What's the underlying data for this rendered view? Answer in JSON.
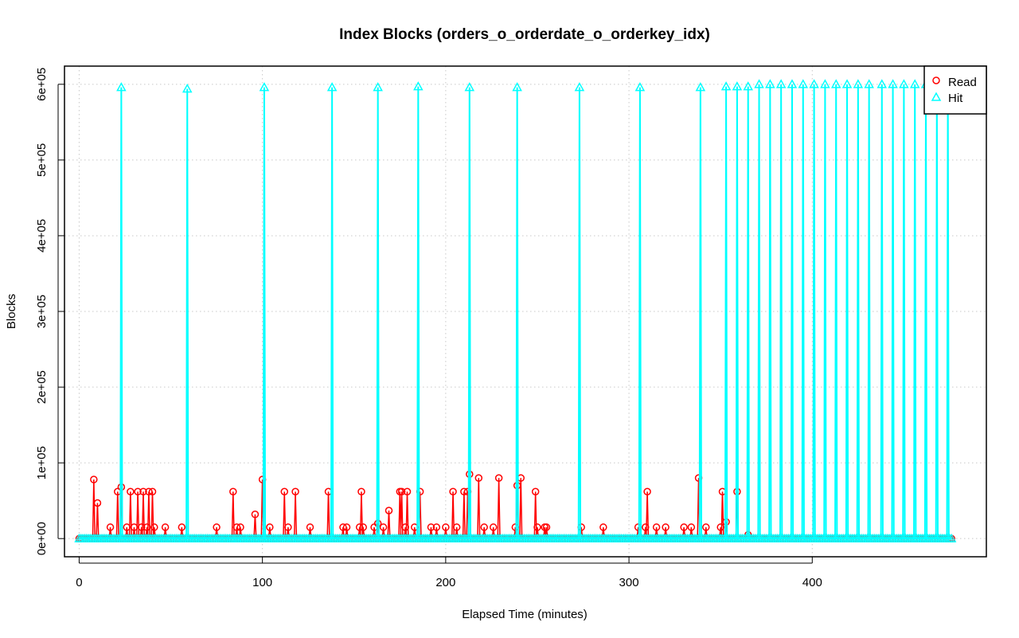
{
  "chart_data": {
    "type": "line",
    "title": "Index Blocks (orders_o_orderdate_o_orderkey_idx)",
    "xlabel": "Elapsed Time (minutes)",
    "ylabel": "Blocks",
    "xlim": [
      -8,
      495
    ],
    "ylim": [
      -24000,
      624000
    ],
    "x_ticks": [
      0,
      100,
      200,
      300,
      400
    ],
    "x_tick_labels": [
      "0",
      "100",
      "200",
      "300",
      "400"
    ],
    "y_ticks": [
      0,
      100000,
      200000,
      300000,
      400000,
      500000,
      600000
    ],
    "y_tick_labels": [
      "0e+00",
      "1e+05",
      "2e+05",
      "3e+05",
      "4e+05",
      "5e+05",
      "6e+05"
    ],
    "grid": true,
    "legend_position": "top-right",
    "x_end": 476,
    "series": [
      {
        "name": "Read",
        "color": "#ff0000",
        "marker": "circle",
        "points": [
          [
            8,
            78000
          ],
          [
            10,
            47000
          ],
          [
            17,
            15000
          ],
          [
            21,
            62000
          ],
          [
            23,
            68000
          ],
          [
            26,
            15000
          ],
          [
            28,
            62000
          ],
          [
            30,
            15000
          ],
          [
            32,
            62000
          ],
          [
            34,
            15000
          ],
          [
            35,
            62000
          ],
          [
            37,
            15000
          ],
          [
            38,
            62000
          ],
          [
            40,
            62000
          ],
          [
            41,
            15000
          ],
          [
            47,
            15000
          ],
          [
            56,
            15000
          ],
          [
            75,
            15000
          ],
          [
            84,
            62000
          ],
          [
            86,
            15000
          ],
          [
            88,
            15000
          ],
          [
            96,
            32000
          ],
          [
            100,
            78000
          ],
          [
            104,
            15000
          ],
          [
            112,
            62000
          ],
          [
            114,
            15000
          ],
          [
            118,
            62000
          ],
          [
            126,
            15000
          ],
          [
            136,
            62000
          ],
          [
            144,
            15000
          ],
          [
            146,
            15000
          ],
          [
            153,
            15000
          ],
          [
            154,
            62000
          ],
          [
            155,
            15000
          ],
          [
            161,
            15000
          ],
          [
            163,
            20000
          ],
          [
            166,
            15000
          ],
          [
            169,
            37000
          ],
          [
            175,
            62000
          ],
          [
            176,
            62000
          ],
          [
            178,
            15000
          ],
          [
            179,
            62000
          ],
          [
            183,
            15000
          ],
          [
            186,
            62000
          ],
          [
            192,
            15000
          ],
          [
            195,
            15000
          ],
          [
            200,
            15000
          ],
          [
            204,
            62000
          ],
          [
            206,
            15000
          ],
          [
            210,
            62000
          ],
          [
            212,
            62000
          ],
          [
            213,
            85000
          ],
          [
            218,
            80000
          ],
          [
            221,
            15000
          ],
          [
            226,
            15000
          ],
          [
            229,
            80000
          ],
          [
            238,
            15000
          ],
          [
            239,
            70000
          ],
          [
            241,
            80000
          ],
          [
            249,
            62000
          ],
          [
            250,
            15000
          ],
          [
            254,
            15000
          ],
          [
            255,
            15000
          ],
          [
            274,
            15000
          ],
          [
            286,
            15000
          ],
          [
            305,
            15000
          ],
          [
            309,
            15000
          ],
          [
            310,
            62000
          ],
          [
            315,
            15000
          ],
          [
            320,
            15000
          ],
          [
            330,
            15000
          ],
          [
            334,
            15000
          ],
          [
            338,
            80000
          ],
          [
            342,
            15000
          ],
          [
            350,
            15000
          ],
          [
            351,
            62000
          ],
          [
            353,
            22000
          ],
          [
            359,
            62000
          ],
          [
            365,
            5000
          ]
        ]
      },
      {
        "name": "Hit",
        "color": "#00ffff",
        "marker": "triangle",
        "peaks": [
          [
            23,
            596000
          ],
          [
            59,
            594000
          ],
          [
            101,
            596000
          ],
          [
            138,
            596000
          ],
          [
            163,
            596000
          ],
          [
            185,
            597000
          ],
          [
            213,
            596000
          ],
          [
            239,
            596000
          ],
          [
            273,
            596000
          ],
          [
            306,
            596000
          ],
          [
            339,
            596000
          ],
          [
            353,
            597000
          ],
          [
            359,
            597000
          ],
          [
            365,
            597000
          ],
          [
            371,
            600000
          ],
          [
            377,
            600000
          ],
          [
            383,
            600000
          ],
          [
            389,
            600000
          ],
          [
            395,
            600000
          ],
          [
            401,
            600000
          ],
          [
            407,
            600000
          ],
          [
            413,
            600000
          ],
          [
            419,
            600000
          ],
          [
            425,
            600000
          ],
          [
            431,
            600000
          ],
          [
            438,
            600000
          ],
          [
            444,
            600000
          ],
          [
            450,
            600000
          ],
          [
            456,
            600000
          ],
          [
            462,
            600000
          ],
          [
            468,
            600000
          ],
          [
            474,
            600000
          ]
        ]
      }
    ]
  }
}
